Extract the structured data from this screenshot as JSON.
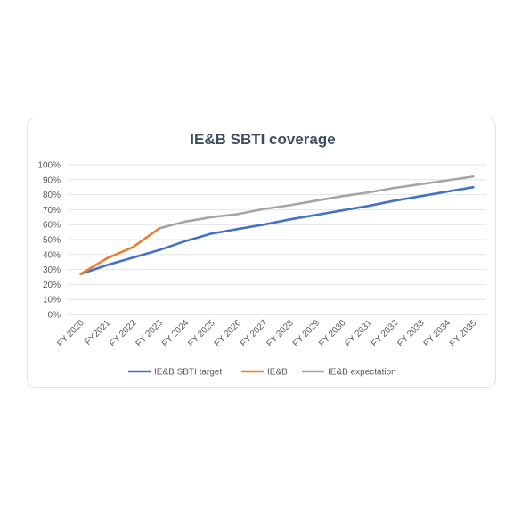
{
  "chart_data": {
    "type": "line",
    "title": "IE&B SBTI coverage",
    "xlabel": "",
    "ylabel": "",
    "categories": [
      "FY 2020",
      "FY2021",
      "FY 2022",
      "FY 2023",
      "FY 2024",
      "FY 2025",
      "FY 2026",
      "FY 2027",
      "FY 2028",
      "FY 2029",
      "FY 2030",
      "FY 2031",
      "FY 2032",
      "FY 2033",
      "FY 2034",
      "FY 2035"
    ],
    "y_ticks": [
      "0%",
      "10%",
      "20%",
      "30%",
      "40%",
      "50%",
      "60%",
      "70%",
      "80%",
      "90%",
      "100%"
    ],
    "ylim": [
      0,
      100
    ],
    "grid": true,
    "legend_position": "bottom",
    "series": [
      {
        "name": "IE&B SBTI target",
        "color": "#4472c4",
        "values": [
          27,
          33,
          38,
          43,
          49,
          54,
          57,
          60,
          63.5,
          66.5,
          69.5,
          72.5,
          76,
          79,
          82,
          85
        ]
      },
      {
        "name": "IE&B",
        "color": "#ed7d31",
        "values": [
          27,
          37.5,
          45,
          57.5,
          null,
          null,
          null,
          null,
          null,
          null,
          null,
          null,
          null,
          null,
          null,
          null
        ]
      },
      {
        "name": "IE&B expectation",
        "color": "#a5a5a5",
        "values": [
          null,
          null,
          null,
          57.5,
          62,
          65,
          67,
          70.5,
          73,
          76,
          79,
          81.5,
          84.5,
          87,
          89.5,
          92
        ]
      }
    ]
  }
}
